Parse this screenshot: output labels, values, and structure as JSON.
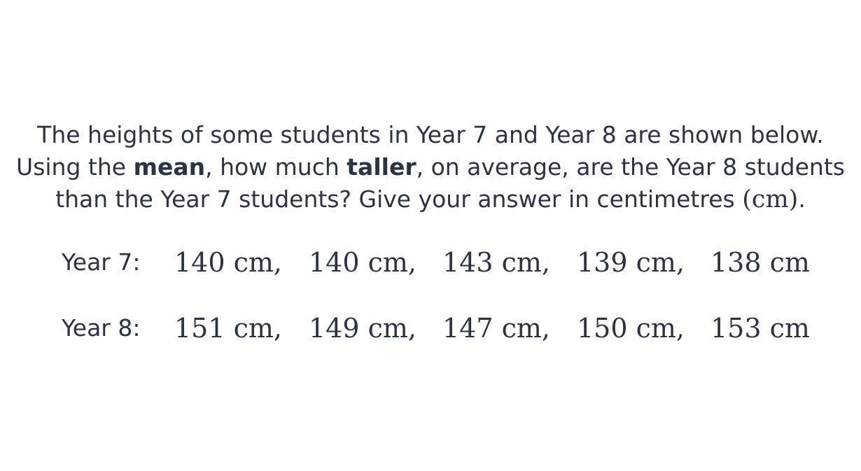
{
  "question": {
    "line1": "The heights of some students in Year 7 and Year 8 are shown below.",
    "line2_a": "Using the ",
    "line2_bold1": "mean",
    "line2_b": ", how much ",
    "line2_bold2": "taller",
    "line2_c": ", on average, are the Year 8 students",
    "line3_a": "than the Year 7 students? Give your answer in centimetres ",
    "line3_unit": "(cm)",
    "line3_end": "."
  },
  "rows": [
    {
      "label": "Year 7:",
      "values": [
        "140 cm,",
        "140 cm,",
        "143 cm,",
        "139 cm,",
        "138 cm"
      ]
    },
    {
      "label": "Year 8:",
      "values": [
        "151 cm,",
        "149 cm,",
        "147 cm,",
        "150 cm,",
        "153 cm"
      ]
    }
  ]
}
